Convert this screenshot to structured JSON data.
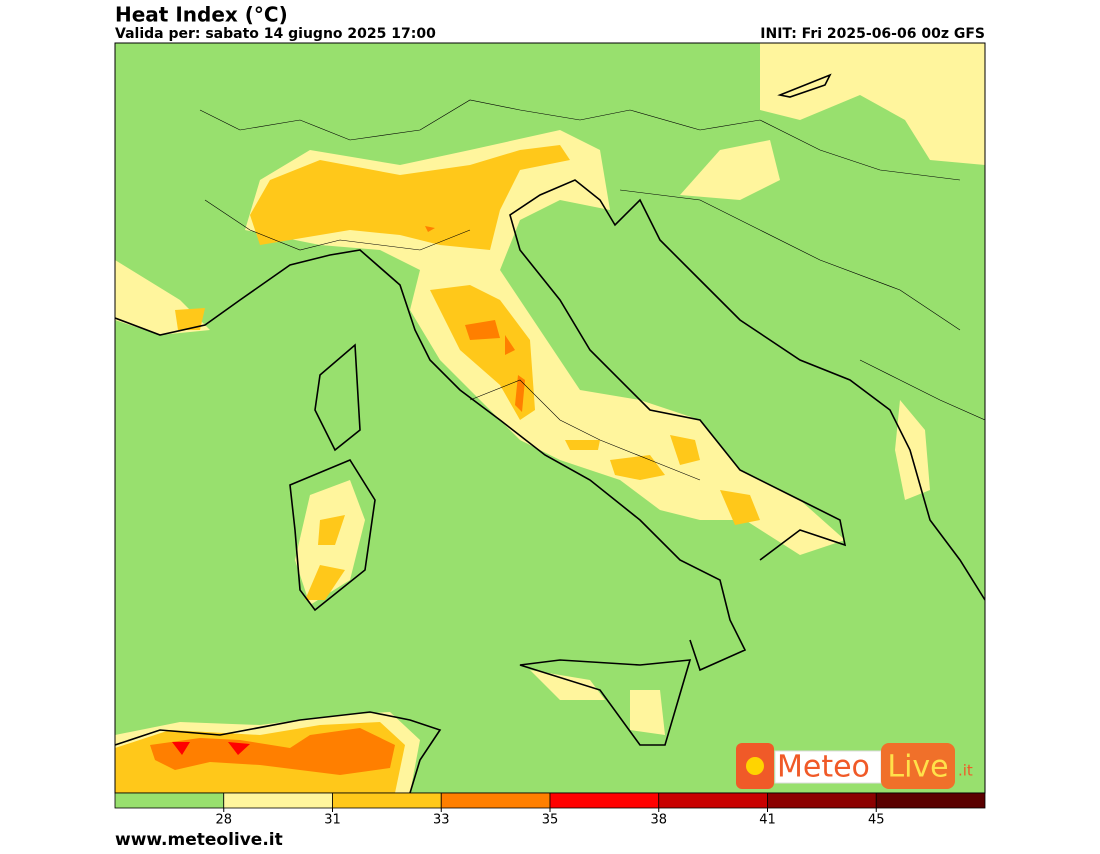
{
  "header": {
    "title": "Heat Index (°C)",
    "valid": "Valida per: sabato 14 giugno 2025 17:00",
    "init": "INIT: Fri 2025-06-06 00z GFS"
  },
  "legend": {
    "colors": [
      "#98e06e",
      "#fff59d",
      "#ffc81a",
      "#ff7f00",
      "#ff0000",
      "#c80000",
      "#8b0000",
      "#5a0000"
    ],
    "ticks": [
      28,
      31,
      33,
      35,
      38,
      41,
      45
    ]
  },
  "logo": {
    "meteo": "Meteo",
    "live": "Live",
    "suffix": ".it"
  },
  "footer": "www.meteolive.it"
}
